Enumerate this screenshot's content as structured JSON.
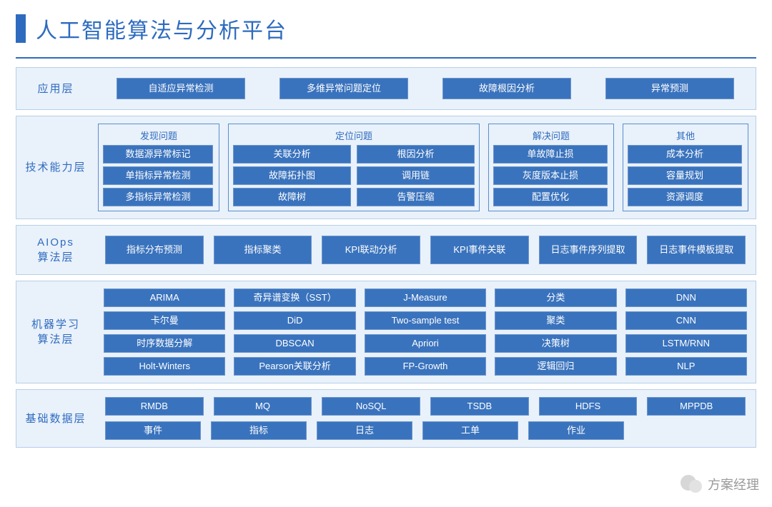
{
  "title": "人工智能算法与分析平台",
  "colors": {
    "brand": "#2e6bbf",
    "layer_bg": "#e9f1fa",
    "layer_border": "#b8cfe8",
    "cell_bg": "#3a73bd",
    "group_border": "#5a8fce",
    "title_underline": "#2e6bbf"
  },
  "layers": {
    "application": {
      "label": "应用层",
      "items": [
        "自适应异常检测",
        "多维异常问题定位",
        "故障根因分析",
        "异常预测"
      ]
    },
    "tech": {
      "label": "技术能力层",
      "groups": [
        {
          "title": "发现问题",
          "items": [
            "数据源异常标记",
            "单指标异常检测",
            "多指标异常检测"
          ]
        },
        {
          "title": "定位问题",
          "cols": [
            [
              "关联分析",
              "故障拓扑图",
              "故障树"
            ],
            [
              "根因分析",
              "调用链",
              "告警压缩"
            ]
          ]
        },
        {
          "title": "解决问题",
          "items": [
            "单故障止损",
            "灰度版本止损",
            "配置优化"
          ]
        },
        {
          "title": "其他",
          "items": [
            "成本分析",
            "容量规划",
            "资源调度"
          ]
        }
      ]
    },
    "aiops": {
      "label": "AIOps\n算法层",
      "items": [
        "指标分布预测",
        "指标聚类",
        "KPI联动分析",
        "KPI事件关联",
        "日志事件序列提取",
        "日志事件模板提取"
      ]
    },
    "ml": {
      "label": "机器学习\n算法层",
      "grid": [
        [
          "ARIMA",
          "奇异谱变换（SST）",
          "J-Measure",
          "分类",
          "DNN"
        ],
        [
          "卡尔曼",
          "DiD",
          "Two-sample test",
          "聚类",
          "CNN"
        ],
        [
          "时序数据分解",
          "DBSCAN",
          "Apriori",
          "决策树",
          "LSTM/RNN"
        ],
        [
          "Holt-Winters",
          "Pearson关联分析",
          "FP-Growth",
          "逻辑回归",
          "NLP"
        ]
      ]
    },
    "data": {
      "label": "基础数据层",
      "row1": [
        "RMDB",
        "MQ",
        "NoSQL",
        "TSDB",
        "HDFS",
        "MPPDB"
      ],
      "row2": [
        "事件",
        "指标",
        "日志",
        "工单",
        "作业"
      ]
    }
  },
  "watermark": {
    "text": "方案经理"
  }
}
